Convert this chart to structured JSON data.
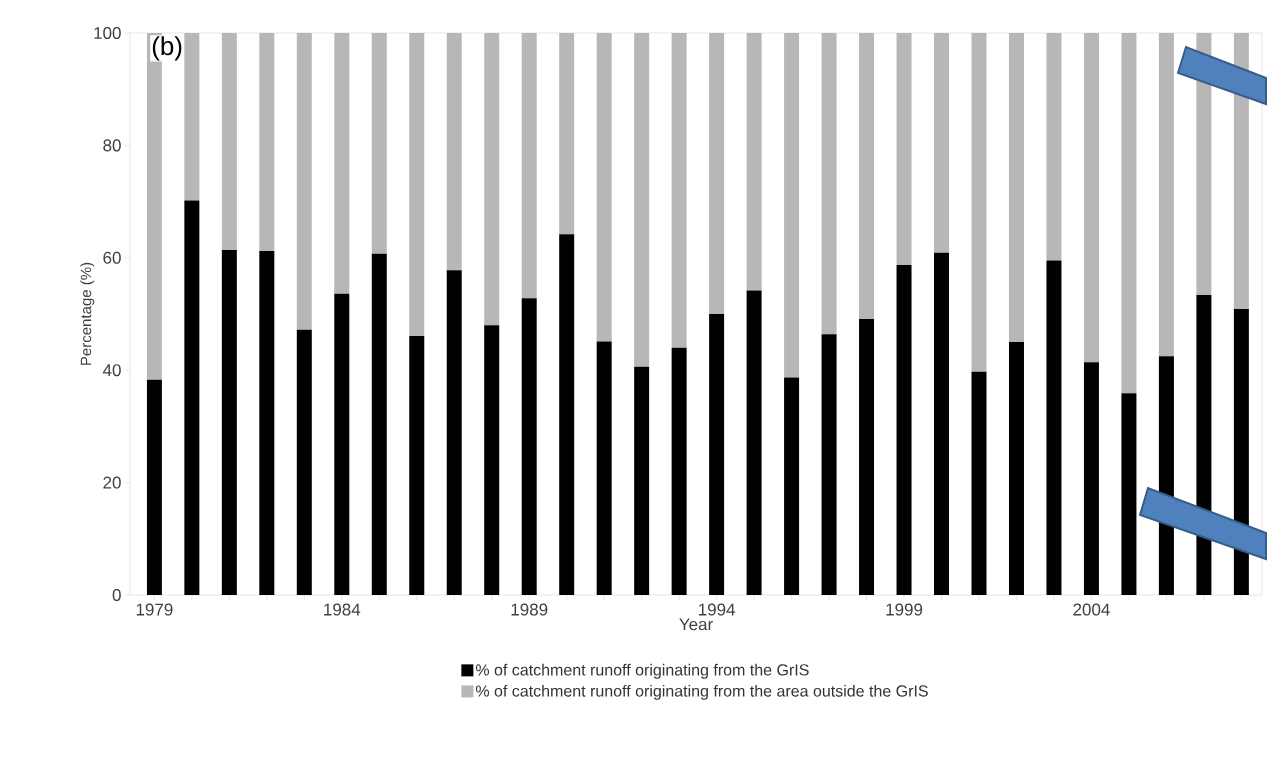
{
  "chart_data": {
    "type": "bar",
    "stacked": true,
    "xlabel": "Year",
    "ylabel": "Percentage (%)",
    "categories": [
      "1979",
      null,
      null,
      null,
      null,
      "1984",
      null,
      null,
      null,
      null,
      "1989",
      null,
      null,
      null,
      null,
      "1994",
      null,
      null,
      null,
      null,
      "1999",
      null,
      null,
      null,
      null,
      "2004",
      null,
      null,
      null,
      null
    ],
    "series": [
      {
        "name": "% of catchment runoff originating from the GrIS",
        "color": "#000000",
        "values": [
          38.3,
          70.2,
          61.4,
          61.2,
          47.2,
          53.6,
          60.7,
          46.1,
          57.8,
          48.0,
          52.8,
          64.2,
          45.1,
          40.6,
          44.0,
          50.0,
          54.2,
          38.7,
          46.4,
          49.1,
          58.7,
          60.9,
          39.7,
          45.0,
          59.5,
          41.4,
          35.9,
          42.5,
          53.4,
          50.9
        ]
      },
      {
        "name": "% of catchment runoff originating from the area outside the GrIS",
        "color": "#b7b7b7",
        "values": [
          61.7,
          29.8,
          38.6,
          38.8,
          52.8,
          46.4,
          39.3,
          53.9,
          42.2,
          52.0,
          47.2,
          35.8,
          54.9,
          59.4,
          56.0,
          50.0,
          45.8,
          61.3,
          53.6,
          50.9,
          41.3,
          39.1,
          60.3,
          55.0,
          40.5,
          58.6,
          64.1,
          57.5,
          46.6,
          49.1
        ]
      }
    ],
    "ylim": [
      0,
      100
    ],
    "yticks": [
      0,
      20,
      40,
      60,
      80,
      100
    ],
    "legend": "bottom",
    "annotations": [
      "(b)"
    ]
  }
}
